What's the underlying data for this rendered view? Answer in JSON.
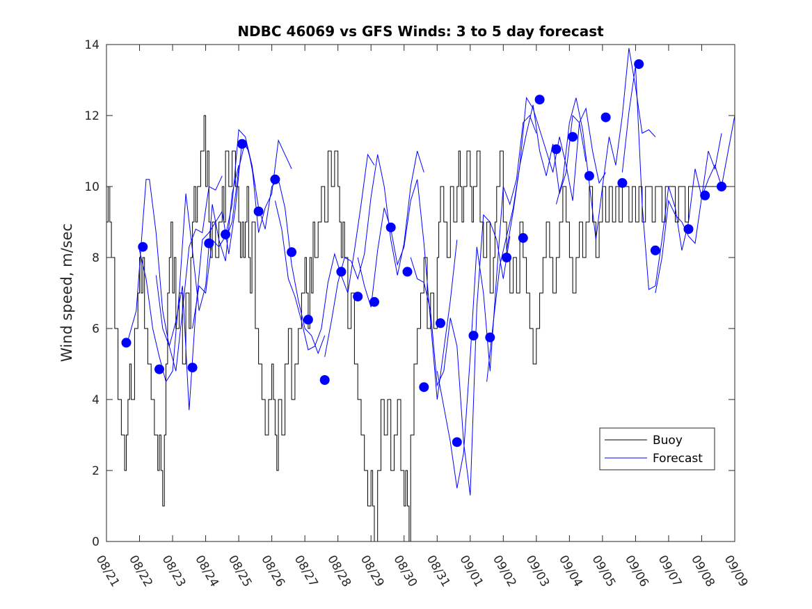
{
  "chart_data": {
    "type": "line",
    "title": "NDBC 46069 vs GFS Winds: 3 to 5 day forecast",
    "xlabel": "",
    "ylabel": "Wind speed, m/sec",
    "xlim": [
      0,
      19
    ],
    "ylim": [
      0,
      14
    ],
    "x_tick_labels": [
      "08/21",
      "08/22",
      "08/23",
      "08/24",
      "08/25",
      "08/26",
      "08/27",
      "08/28",
      "08/29",
      "08/30",
      "08/31",
      "09/01",
      "09/02",
      "09/03",
      "09/04",
      "09/05",
      "09/06",
      "09/07",
      "09/08",
      "09/09"
    ],
    "y_ticks": [
      0,
      2,
      4,
      6,
      8,
      10,
      12,
      14
    ],
    "legend": {
      "position": "bottom-right",
      "entries": [
        {
          "label": "Buoy",
          "color": "#000000"
        },
        {
          "label": "Forecast",
          "color": "#0000ff"
        }
      ]
    },
    "colors": {
      "buoy": "#000000",
      "forecast": "#0000ff",
      "marker": "#0000ff"
    },
    "series": [
      {
        "name": "Buoy",
        "x": [
          0,
          0.05,
          0.1,
          0.15,
          0.25,
          0.35,
          0.45,
          0.55,
          0.6,
          0.65,
          0.7,
          0.75,
          0.85,
          0.95,
          1.0,
          1.05,
          1.1,
          1.15,
          1.25,
          1.35,
          1.45,
          1.55,
          1.6,
          1.65,
          1.7,
          1.75,
          1.8,
          1.85,
          1.9,
          1.95,
          2.0,
          2.05,
          2.1,
          2.2,
          2.3,
          2.4,
          2.5,
          2.55,
          2.6,
          2.65,
          2.7,
          2.75,
          2.85,
          2.95,
          3.0,
          3.05,
          3.1,
          3.15,
          3.2,
          3.3,
          3.4,
          3.5,
          3.55,
          3.6,
          3.7,
          3.8,
          3.9,
          4.0,
          4.05,
          4.1,
          4.15,
          4.2,
          4.25,
          4.3,
          4.35,
          4.4,
          4.5,
          4.6,
          4.7,
          4.8,
          4.9,
          5.0,
          5.05,
          5.1,
          5.15,
          5.2,
          5.3,
          5.4,
          5.5,
          5.6,
          5.7,
          5.8,
          5.9,
          6.0,
          6.05,
          6.1,
          6.15,
          6.2,
          6.25,
          6.3,
          6.4,
          6.5,
          6.6,
          6.7,
          6.8,
          6.9,
          7.0,
          7.05,
          7.1,
          7.15,
          7.2,
          7.3,
          7.4,
          7.5,
          7.6,
          7.7,
          7.8,
          7.9,
          8.0,
          8.05,
          8.1,
          8.2,
          8.3,
          8.4,
          8.5,
          8.6,
          8.7,
          8.8,
          8.9,
          9.0,
          9.05,
          9.1,
          9.15,
          9.2,
          9.3,
          9.4,
          9.5,
          9.6,
          9.7,
          9.8,
          9.9,
          10.0,
          10.05,
          10.1,
          10.2,
          10.3,
          10.4,
          10.5,
          10.6,
          10.65,
          10.7,
          10.75,
          10.8,
          10.9,
          11.0,
          11.05,
          11.1,
          11.2,
          11.3,
          11.4,
          11.5,
          11.6,
          11.7,
          11.75,
          11.8,
          11.9,
          12.0,
          12.1,
          12.2,
          12.3,
          12.4,
          12.5,
          12.6,
          12.7,
          12.8,
          12.9,
          13.0,
          13.1,
          13.2,
          13.3,
          13.4,
          13.5,
          13.6,
          13.7,
          13.8,
          13.9,
          14.0,
          14.1,
          14.2,
          14.3,
          14.4,
          14.5,
          14.6,
          14.7,
          14.8,
          14.9,
          15.0,
          15.1,
          15.2,
          15.3,
          15.4,
          15.5,
          15.6,
          15.7,
          15.8,
          15.9,
          16.0,
          16.1,
          16.2,
          16.3,
          16.4,
          16.5,
          16.6,
          16.7,
          16.8,
          16.9,
          17.0,
          17.1,
          17.2,
          17.3,
          17.4,
          17.5,
          17.6,
          17.7,
          17.8,
          17.9,
          18.0,
          18.1,
          18.2,
          18.3,
          18.4,
          18.5,
          18.6,
          18.7,
          18.8,
          18.9,
          19.0
        ],
        "y": [
          9,
          10,
          9,
          8,
          6,
          4,
          3,
          2,
          3,
          4,
          5,
          4,
          6,
          7,
          8,
          7,
          8,
          6,
          5,
          4,
          3,
          2,
          3,
          2,
          1,
          3,
          5,
          7,
          8,
          9,
          7,
          8,
          6,
          7,
          5,
          7,
          6,
          8,
          9,
          10,
          9,
          10,
          11,
          12,
          10,
          11,
          9,
          8,
          9,
          8,
          9,
          10,
          9,
          11,
          10,
          11,
          10,
          9,
          8,
          9,
          8,
          9,
          10,
          8,
          7,
          9,
          6,
          5,
          4,
          3,
          4,
          5,
          4,
          3,
          2,
          4,
          3,
          5,
          6,
          4,
          5,
          6,
          7,
          8,
          7,
          6,
          8,
          7,
          9,
          8,
          9,
          10,
          9,
          11,
          10,
          11,
          10,
          9,
          8,
          9,
          8,
          6,
          7,
          5,
          4,
          3,
          2,
          1,
          2,
          1,
          0,
          2,
          4,
          3,
          4,
          2,
          3,
          4,
          2,
          1,
          2,
          1,
          0,
          3,
          5,
          6,
          7,
          8,
          6,
          7,
          6,
          8,
          9,
          10,
          9,
          8,
          10,
          9,
          10,
          11,
          10,
          9,
          10,
          11,
          10,
          9,
          10,
          11,
          9,
          8,
          9,
          7,
          8,
          9,
          10,
          11,
          9,
          8,
          7,
          8,
          7,
          9,
          8,
          7,
          6,
          5,
          6,
          7,
          8,
          9,
          8,
          7,
          8,
          9,
          10,
          9,
          8,
          7,
          8,
          9,
          8,
          9,
          10,
          9,
          8,
          9,
          10,
          9,
          10,
          9,
          10,
          9,
          10,
          10,
          9,
          10,
          9,
          10,
          9,
          10,
          10,
          9,
          10,
          10,
          9,
          10,
          10,
          10,
          9,
          10,
          10,
          9,
          10,
          10,
          10,
          10,
          10,
          10,
          10,
          10,
          10,
          10,
          10,
          10,
          10,
          10,
          10
        ]
      }
    ],
    "forecast_runs": [
      {
        "x": [
          0.6,
          0.9,
          1.1,
          1.2,
          1.3,
          1.5,
          1.7,
          1.9,
          2.1,
          2.3,
          2.5,
          2.7,
          2.9,
          3.1,
          3.3,
          3.5
        ],
        "y": [
          5.5,
          6.5,
          9,
          10.2,
          10.2,
          8.7,
          6.5,
          5.5,
          4.8,
          6.5,
          8.3,
          8.8,
          8.7,
          10,
          9.9,
          10.3
        ]
      },
      {
        "x": [
          1.0,
          1.2,
          1.4,
          1.6,
          1.8,
          2.0,
          2.2,
          2.4,
          2.6,
          2.8,
          3.0,
          3.2,
          3.4,
          3.6,
          3.8,
          4.0
        ],
        "y": [
          8.2,
          7.4,
          6.0,
          5.2,
          4.5,
          4.8,
          7.0,
          9.8,
          8.2,
          6.5,
          7.2,
          9.5,
          8.5,
          7.9,
          9.8,
          10.6
        ]
      },
      {
        "x": [
          1.5,
          1.7,
          1.9,
          2.1,
          2.3,
          2.5,
          2.7,
          2.9,
          3.1,
          3.3,
          3.5,
          3.7,
          3.9,
          4.1,
          4.3,
          4.5
        ],
        "y": [
          7.5,
          6.0,
          5.5,
          6.2,
          7.2,
          3.7,
          6.5,
          8.5,
          8.7,
          9.0,
          9.3,
          8.1,
          9.4,
          11.3,
          11.0,
          10.0
        ]
      },
      {
        "x": [
          2.6,
          2.8,
          3.0,
          3.2,
          3.4,
          3.6,
          3.8,
          4.0,
          4.2,
          4.4,
          4.6,
          4.8,
          5.0,
          5.2,
          5.4,
          5.6
        ],
        "y": [
          6.0,
          7.2,
          7.0,
          8.5,
          8.3,
          8.6,
          9.5,
          11.6,
          11.4,
          10.6,
          8.7,
          9.4,
          9.8,
          11.3,
          10.9,
          10.5
        ]
      },
      {
        "x": [
          3.6,
          3.8,
          4.0,
          4.2,
          4.4,
          4.6,
          4.8,
          5.0,
          5.2,
          5.4,
          5.6,
          5.8,
          6.0,
          6.2,
          6.4,
          6.6
        ],
        "y": [
          8.5,
          9.0,
          10.5,
          11.3,
          10.6,
          9.4,
          8.8,
          10.0,
          10.2,
          9.4,
          7.8,
          6.8,
          6.0,
          5.8,
          5.3,
          5.8
        ]
      },
      {
        "x": [
          5.1,
          5.3,
          5.5,
          5.7,
          5.9,
          6.1,
          6.3,
          6.5,
          6.7,
          6.9,
          7.1,
          7.3,
          7.5,
          7.7,
          7.9,
          8.1
        ],
        "y": [
          9.6,
          8.8,
          7.4,
          6.9,
          6.2,
          5.4,
          5.5,
          6.0,
          7.3,
          8.1,
          7.5,
          7.0,
          8.2,
          9.5,
          10.9,
          10.6
        ]
      },
      {
        "x": [
          6.6,
          6.8,
          7.0,
          7.2,
          7.4,
          7.6,
          7.8,
          8.0,
          8.2,
          8.4,
          8.6,
          8.8,
          9.0,
          9.2,
          9.4,
          9.6
        ],
        "y": [
          5.2,
          6.2,
          7.3,
          8.0,
          7.9,
          7.4,
          8.1,
          9.7,
          10.9,
          10.0,
          8.5,
          7.5,
          8.4,
          10.0,
          11.0,
          10.4
        ]
      },
      {
        "x": [
          7.6,
          7.8,
          8.0,
          8.2,
          8.4,
          8.6,
          8.8,
          9.0,
          9.2,
          9.4,
          9.6,
          9.8,
          10.0,
          10.2,
          10.4,
          10.6
        ],
        "y": [
          8.0,
          7.2,
          6.6,
          8.2,
          9.4,
          8.8,
          7.8,
          8.3,
          9.6,
          10.2,
          8.4,
          6.2,
          4.0,
          5.4,
          6.8,
          8.5
        ]
      },
      {
        "x": [
          9.2,
          9.4,
          9.6,
          9.8,
          10.0,
          10.2,
          10.4,
          10.6,
          10.8,
          11.0,
          11.2,
          11.4,
          11.6,
          11.8,
          12.0,
          12.2
        ],
        "y": [
          8.0,
          7.4,
          7.3,
          6.5,
          4.4,
          4.8,
          6.3,
          5.5,
          2.8,
          1.3,
          6.6,
          9.2,
          9.0,
          8.5,
          7.4,
          8.6
        ]
      },
      {
        "x": [
          10.0,
          10.2,
          10.4,
          10.6,
          10.8,
          11.0,
          11.2,
          11.4,
          11.6,
          11.8,
          12.0,
          12.2,
          12.4,
          12.6,
          12.8,
          13.0
        ],
        "y": [
          4.8,
          3.8,
          2.8,
          1.5,
          2.5,
          5.2,
          8.3,
          7.0,
          4.8,
          7.5,
          10.0,
          9.5,
          10.2,
          11.8,
          12.0,
          11.5
        ]
      },
      {
        "x": [
          11.5,
          11.7,
          11.9,
          12.1,
          12.3,
          12.5,
          12.7,
          12.9,
          13.1,
          13.3,
          13.5,
          13.7,
          13.9,
          14.1,
          14.3,
          14.5
        ],
        "y": [
          4.5,
          6.2,
          7.8,
          8.6,
          9.4,
          10.6,
          11.5,
          12.3,
          11.0,
          10.3,
          11.2,
          9.8,
          10.4,
          12.0,
          11.8,
          10.7
        ]
      },
      {
        "x": [
          12.1,
          12.3,
          12.5,
          12.7,
          12.9,
          13.1,
          13.3,
          13.5,
          13.7,
          13.9,
          14.1,
          14.3,
          14.5,
          14.7,
          14.9,
          15.1
        ],
        "y": [
          8.2,
          9.3,
          10.6,
          12.5,
          12.2,
          11.6,
          11.0,
          10.4,
          11.4,
          10.6,
          9.6,
          11.8,
          12.2,
          11.0,
          10.1,
          10.4
        ]
      },
      {
        "x": [
          13.6,
          13.8,
          14.0,
          14.2,
          14.4,
          14.6,
          14.8,
          15.0,
          15.2,
          15.4,
          15.6,
          15.8,
          16.0,
          16.2,
          16.4,
          16.6
        ],
        "y": [
          9.5,
          10.2,
          11.8,
          12.5,
          11.6,
          10.1,
          8.5,
          10.0,
          11.4,
          10.6,
          12.0,
          13.9,
          12.8,
          11.5,
          11.6,
          11.4
        ]
      },
      {
        "x": [
          15.6,
          15.8,
          16.0,
          16.2,
          16.4,
          16.6,
          16.8,
          17.0,
          17.2,
          17.4,
          17.6,
          17.8,
          18.0,
          18.2,
          18.4,
          18.6
        ],
        "y": [
          10.4,
          12.1,
          13.4,
          9.5,
          7.1,
          7.2,
          8.5,
          10.0,
          9.4,
          8.2,
          9.0,
          10.5,
          9.7,
          11.0,
          10.5,
          11.5
        ]
      },
      {
        "x": [
          16.6,
          16.8,
          17.0,
          17.2,
          17.4,
          17.6,
          17.8,
          18.0,
          18.2,
          18.4,
          18.6,
          18.8,
          19.0
        ],
        "y": [
          7.0,
          8.0,
          9.6,
          9.2,
          9.0,
          8.6,
          8.4,
          9.7,
          10.2,
          10.6,
          10.0,
          11.0,
          12.0
        ]
      }
    ],
    "forecast_markers": {
      "x": [
        0.6,
        1.1,
        1.6,
        2.6,
        3.1,
        3.6,
        4.1,
        4.6,
        5.1,
        5.6,
        6.1,
        6.6,
        7.1,
        7.6,
        8.1,
        8.6,
        9.1,
        9.6,
        10.1,
        10.6,
        11.1,
        11.6,
        12.1,
        12.6,
        13.1,
        13.6,
        14.1,
        14.6,
        15.1,
        15.6,
        16.1,
        16.6,
        17.6,
        18.1,
        18.6
      ],
      "y": [
        5.6,
        8.3,
        4.85,
        4.9,
        8.4,
        8.65,
        11.2,
        9.3,
        10.2,
        8.15,
        6.25,
        4.55,
        7.6,
        6.9,
        6.75,
        8.85,
        7.6,
        4.35,
        6.15,
        2.8,
        5.8,
        5.75,
        8.0,
        8.55,
        12.45,
        11.05,
        11.4,
        10.3,
        11.95,
        10.1,
        13.45,
        8.2,
        8.8,
        9.75,
        10.0
      ]
    }
  }
}
